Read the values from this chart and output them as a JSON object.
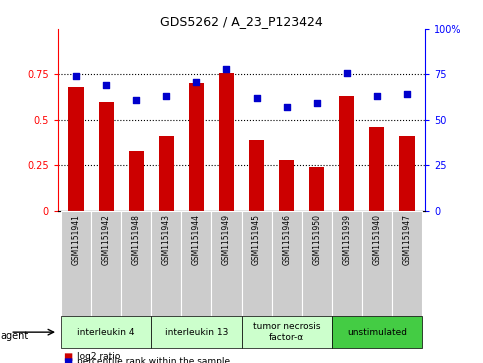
{
  "title": "GDS5262 / A_23_P123424",
  "samples": [
    "GSM1151941",
    "GSM1151942",
    "GSM1151948",
    "GSM1151943",
    "GSM1151944",
    "GSM1151949",
    "GSM1151945",
    "GSM1151946",
    "GSM1151950",
    "GSM1151939",
    "GSM1151940",
    "GSM1151947"
  ],
  "log2_ratio": [
    0.68,
    0.6,
    0.33,
    0.41,
    0.7,
    0.76,
    0.39,
    0.28,
    0.24,
    0.63,
    0.46,
    0.41
  ],
  "percentile_rank": [
    74,
    69,
    61,
    63,
    71,
    78,
    62,
    57,
    59,
    76,
    63,
    64
  ],
  "agents": [
    {
      "label": "interleukin 4",
      "start": 0,
      "end": 3,
      "color": "#ccffcc"
    },
    {
      "label": "interleukin 13",
      "start": 3,
      "end": 6,
      "color": "#ccffcc"
    },
    {
      "label": "tumor necrosis\nfactor-α",
      "start": 6,
      "end": 9,
      "color": "#ccffcc"
    },
    {
      "label": "unstimulated",
      "start": 9,
      "end": 12,
      "color": "#44cc44"
    }
  ],
  "bar_color": "#cc0000",
  "dot_color": "#0000cc",
  "ylim_left": [
    0,
    1.0
  ],
  "ylim_right": [
    0,
    100
  ],
  "yticks_left": [
    0,
    0.25,
    0.5,
    0.75
  ],
  "ytick_labels_left": [
    "0",
    "0.25",
    "0.5",
    "0.75"
  ],
  "yticks_right": [
    0,
    25,
    50,
    75,
    100
  ],
  "ytick_labels_right": [
    "0",
    "25",
    "50",
    "75",
    "100%"
  ],
  "hlines": [
    0.25,
    0.5,
    0.75
  ],
  "legend_log2": "log2 ratio",
  "legend_pct": "percentile rank within the sample",
  "agent_label": "agent"
}
